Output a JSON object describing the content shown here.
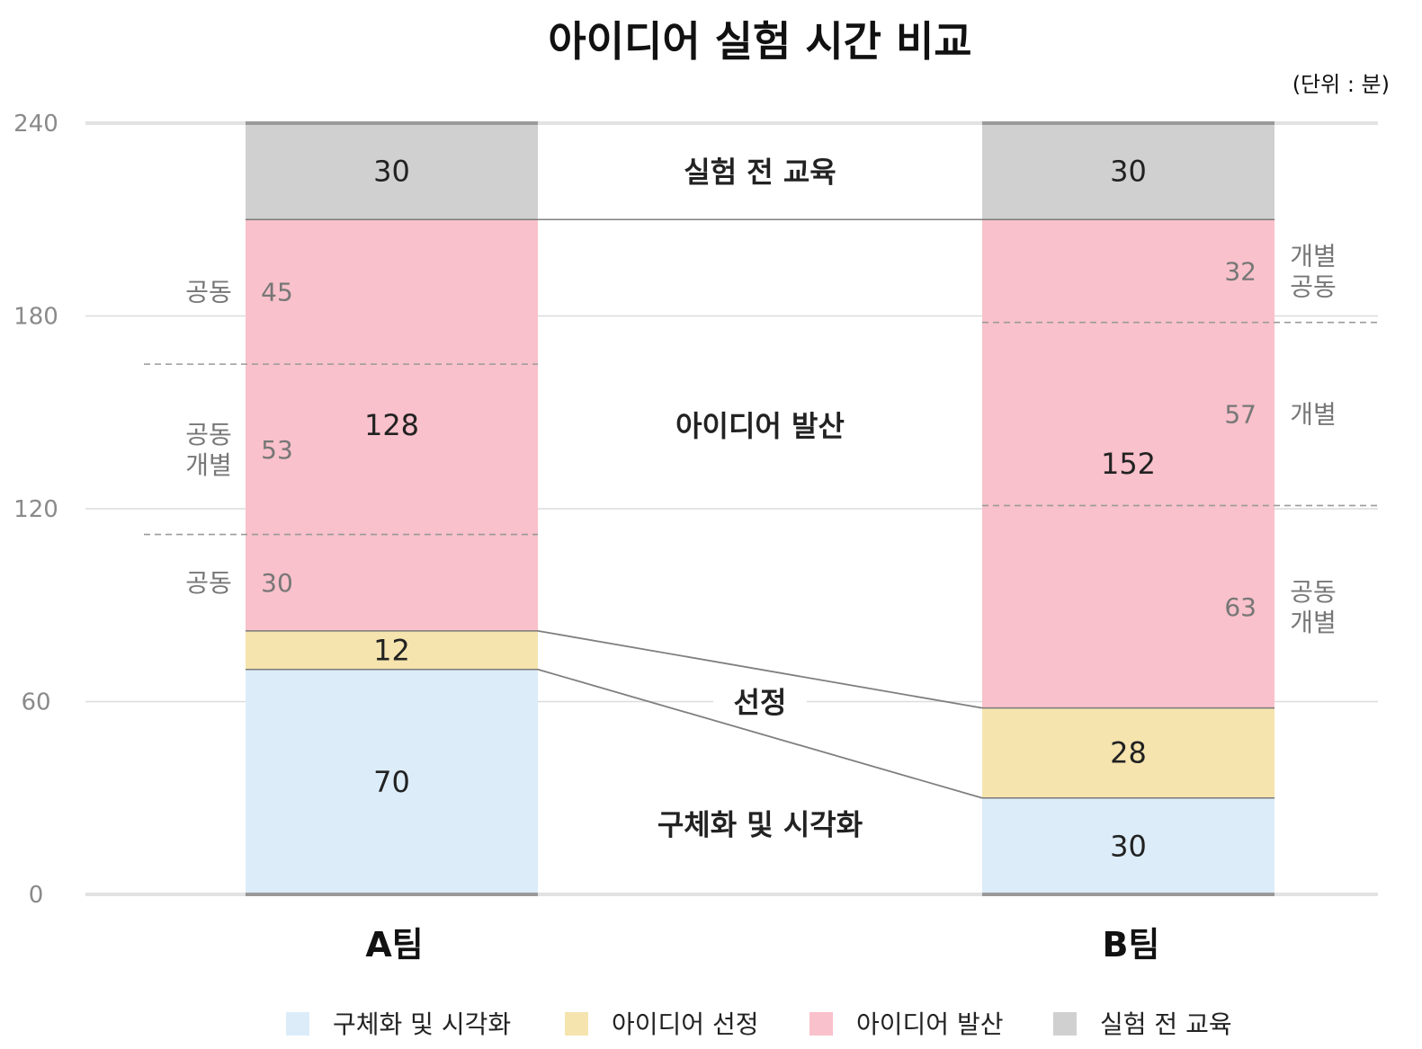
{
  "chart_data": {
    "type": "bar",
    "stacked": true,
    "title": "아이디어 실험 시간 비교",
    "unit": "(단위 : 분)",
    "ylim": [
      0,
      240
    ],
    "yticks": [
      0,
      60,
      120,
      180,
      240
    ],
    "grid": true,
    "legend_position": "bottom",
    "categories": [
      "A팀",
      "B팀"
    ],
    "series": [
      {
        "name": "구체화 및 시각화",
        "values": [
          70,
          30
        ],
        "color": "#dcecf9"
      },
      {
        "name": "아이디어 선정",
        "values": [
          12,
          28
        ],
        "color": "#f5e4ae"
      },
      {
        "name": "아이디어 발산",
        "values": [
          128,
          152
        ],
        "color": "#f9c1cb"
      },
      {
        "name": "실험 전 교육",
        "values": [
          30,
          30
        ],
        "color": "#d0d0d0"
      }
    ],
    "center_labels": [
      "실험 전 교육",
      "아이디어 발산",
      "선정",
      "구체화 및 시각화"
    ],
    "sub_segments": [
      {
        "category": "A팀",
        "parts": [
          {
            "value": 30,
            "mode": [
              "공동"
            ]
          },
          {
            "value": 53,
            "mode": [
              "공동",
              "개별"
            ]
          },
          {
            "value": 45,
            "mode": [
              "공동"
            ]
          }
        ]
      },
      {
        "category": "B팀",
        "parts": [
          {
            "value": 63,
            "mode": [
              "공동",
              "개별"
            ]
          },
          {
            "value": 57,
            "mode": [
              "개별"
            ]
          },
          {
            "value": 32,
            "mode": [
              "개별",
              "공동"
            ]
          }
        ]
      }
    ]
  }
}
